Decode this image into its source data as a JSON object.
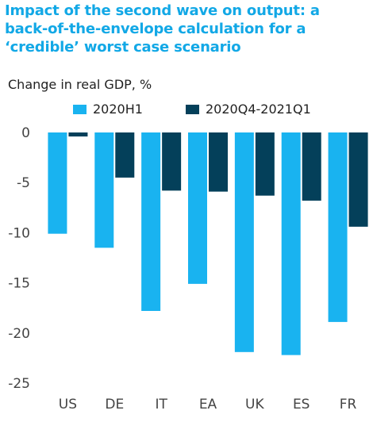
{
  "title_lines": [
    "Impact of the second wave on output: a",
    "back-of-the-envelope calculation for a",
    "‘credible’ worst case scenario"
  ],
  "colors": {
    "title": "#12a8e6",
    "series_1": "#19b3f0",
    "series_2": "#04405a",
    "axis_text": "#444444"
  },
  "chart_data": {
    "type": "bar",
    "title": "Impact of the second wave on output: a back-of-the-envelope calculation for a ‘credible’ worst case scenario",
    "ylabel": "Change in real GDP, %",
    "xlabel": "",
    "categories": [
      "US",
      "DE",
      "IT",
      "EA",
      "UK",
      "ES",
      "FR"
    ],
    "series": [
      {
        "name": "2020H1",
        "values": [
          -10.1,
          -11.5,
          -17.8,
          -15.1,
          -21.9,
          -22.2,
          -18.9
        ]
      },
      {
        "name": "2020Q4-2021Q1",
        "values": [
          -0.4,
          -4.5,
          -5.8,
          -5.9,
          -6.3,
          -6.8,
          -9.4
        ]
      }
    ],
    "ylim": [
      -25,
      0
    ],
    "yticks": [
      0,
      -5,
      -10,
      -15,
      -20,
      -25
    ],
    "ytick_labels": [
      "0",
      "-5",
      "-10",
      "-15",
      "-20",
      "-25"
    ],
    "grid": false,
    "legend_position": "top"
  }
}
